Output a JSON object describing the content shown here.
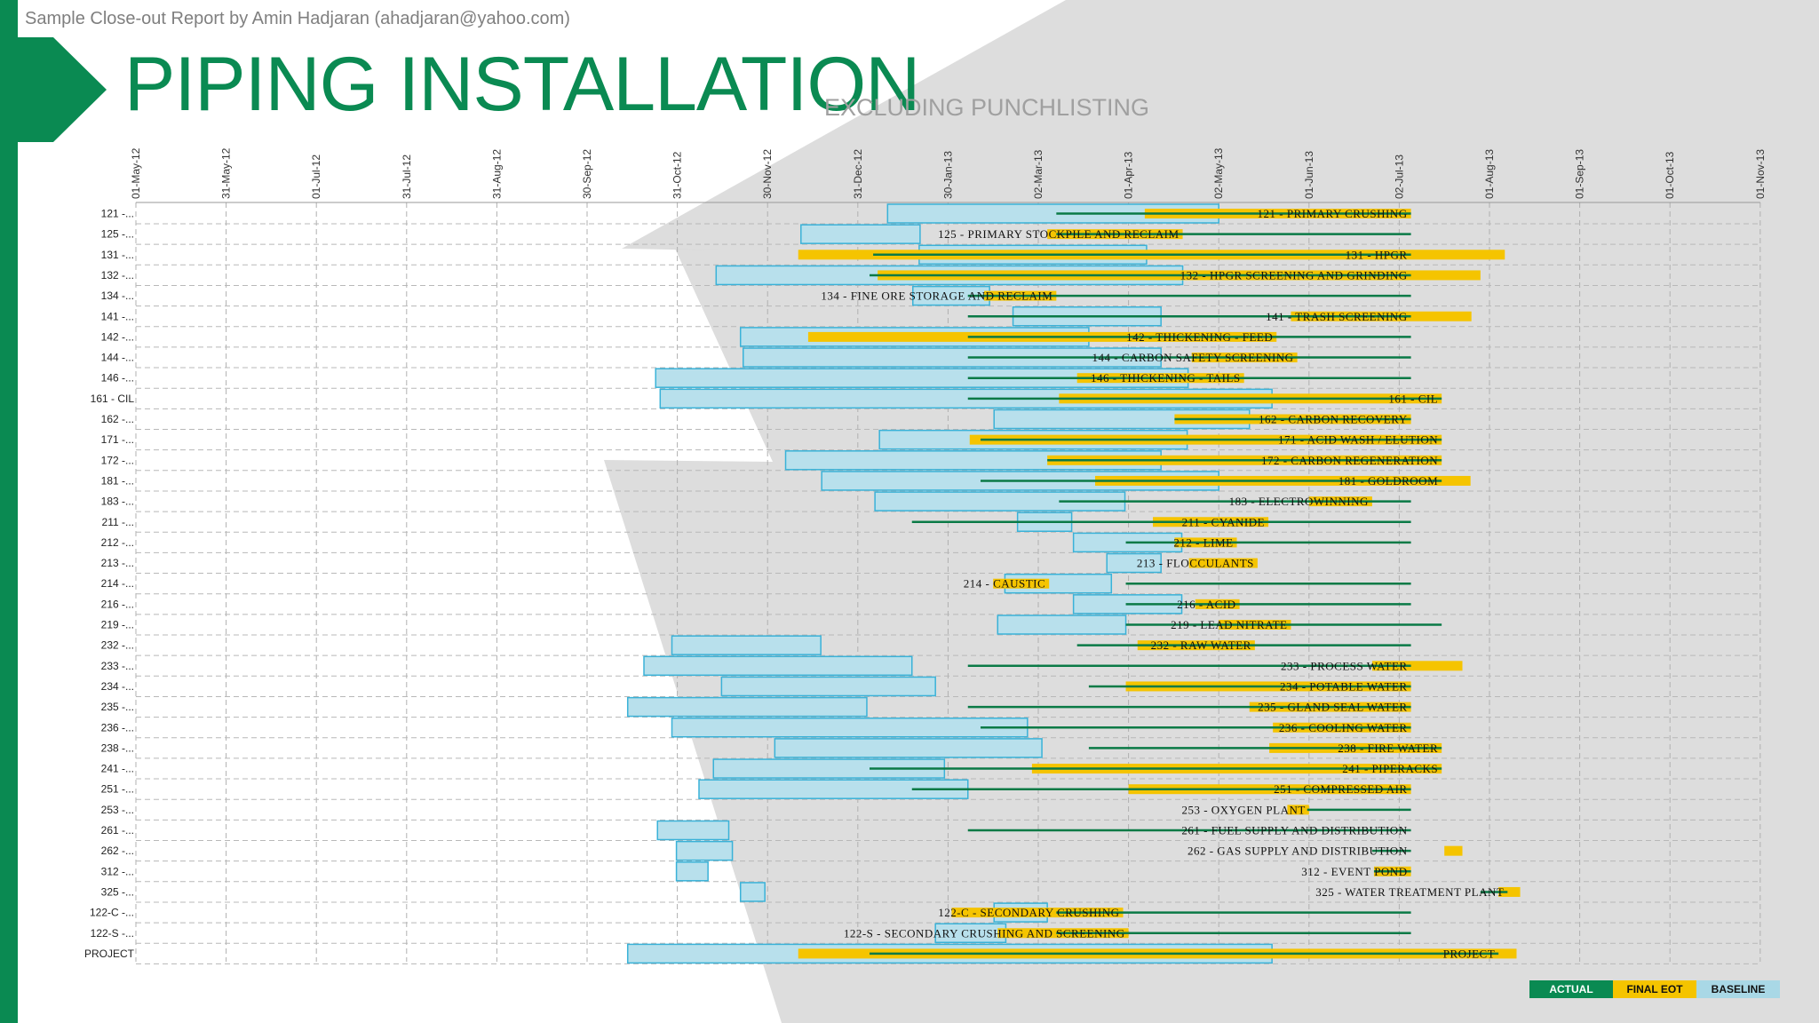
{
  "header": {
    "note": "Sample Close-out Report by Amin Hadjaran (ahadjaran@yahoo.com)",
    "title": "PIPING INSTALLATION",
    "subtitle": "EXCLUDING PUNCHLISTING"
  },
  "colors": {
    "brand_green": "#0a8a52",
    "actual": "#0a7a46",
    "final_eot": "#f5c400",
    "baseline_fill": "#b8e0ec",
    "baseline_stroke": "#3ab2d8",
    "accent_yellow": "#f5c400"
  },
  "legend": [
    {
      "label": "ACTUAL",
      "color": "#0a8a52",
      "text_color": "#ffffff"
    },
    {
      "label": "FINAL EOT",
      "color": "#f5c400",
      "text_color": "#111111"
    },
    {
      "label": "BASELINE",
      "color": "#a9d8e6",
      "text_color": "#111111"
    }
  ],
  "chart_data": {
    "type": "gantt",
    "x_ticks": [
      "01-May-12",
      "31-May-12",
      "01-Jul-12",
      "31-Jul-12",
      "31-Aug-12",
      "30-Sep-12",
      "31-Oct-12",
      "30-Nov-12",
      "31-Dec-12",
      "30-Jan-13",
      "02-Mar-13",
      "01-Apr-13",
      "02-May-13",
      "01-Jun-13",
      "02-Jul-13",
      "01-Aug-13",
      "01-Sep-13",
      "01-Oct-13",
      "01-Nov-13"
    ],
    "series_names": [
      "Actual",
      "Final EOT",
      "Baseline"
    ],
    "rows": [
      {
        "label": "121 -...",
        "name": "121 - PRIMARY CRUSHING",
        "baseline": [
          8.33,
          12.0
        ],
        "final": [
          11.18,
          14.13
        ],
        "actual": [
          10.2,
          14.13
        ]
      },
      {
        "label": "125 -...",
        "name": "125 - PRIMARY STOCKPILE AND RECLAIM",
        "baseline": [
          7.37,
          8.69
        ],
        "final": [
          10.1,
          11.6
        ],
        "actual": [
          10.2,
          14.13
        ]
      },
      {
        "label": "131 -...",
        "name": "131 - HPGR",
        "baseline": [
          8.68,
          11.2
        ],
        "final": [
          7.34,
          15.17
        ],
        "actual": [
          8.17,
          14.13
        ]
      },
      {
        "label": "132 -...",
        "name": "132 - HPGR SCREENING AND GRINDING",
        "baseline": [
          6.43,
          11.6
        ],
        "final": [
          8.22,
          14.9
        ],
        "actual": [
          8.13,
          14.13
        ]
      },
      {
        "label": "134 -...",
        "name": "134 - FINE ORE STORAGE AND RECLAIM",
        "baseline": [
          8.61,
          9.46
        ],
        "final": [
          9.4,
          10.2
        ],
        "actual": [
          9.22,
          14.13
        ]
      },
      {
        "label": "141 -...",
        "name": "141 - TRASH SCREENING",
        "baseline": [
          9.72,
          11.36
        ],
        "final": [
          12.8,
          14.8
        ],
        "actual": [
          9.22,
          14.13
        ]
      },
      {
        "label": "142 -...",
        "name": "142 - THICKENING - FEED",
        "baseline": [
          6.7,
          10.56
        ],
        "final": [
          7.45,
          12.64
        ],
        "actual": [
          9.22,
          14.13
        ]
      },
      {
        "label": "144 -...",
        "name": "144 - CARBON SAFETY SCREENING",
        "baseline": [
          6.73,
          11.36
        ],
        "final": [
          11.7,
          12.87
        ],
        "actual": [
          9.22,
          14.13
        ]
      },
      {
        "label": "146 -...",
        "name": "146 - THICKENING - TAILS",
        "baseline": [
          5.76,
          11.66
        ],
        "final": [
          10.43,
          12.28
        ],
        "actual": [
          9.22,
          14.13
        ]
      },
      {
        "label": "161 - CIL",
        "name": "161 - CIL",
        "baseline": [
          5.81,
          12.59
        ],
        "final": [
          10.23,
          14.47
        ],
        "actual": [
          9.22,
          14.47
        ]
      },
      {
        "label": "162 -...",
        "name": "162 - CARBON RECOVERY",
        "baseline": [
          9.51,
          12.34
        ],
        "final": [
          11.51,
          14.13
        ],
        "actual": [
          11.51,
          14.13
        ]
      },
      {
        "label": "171 -...",
        "name": "171 - ACID WASH / ELUTION",
        "baseline": [
          8.24,
          11.65
        ],
        "final": [
          9.24,
          14.47
        ],
        "actual": [
          9.36,
          14.47
        ]
      },
      {
        "label": "172 -...",
        "name": "172 - CARBON REGENERATION",
        "baseline": [
          7.2,
          11.36
        ],
        "final": [
          10.1,
          14.47
        ],
        "actual": [
          10.1,
          14.47
        ]
      },
      {
        "label": "181 -...",
        "name": "181 - GOLDROOM",
        "baseline": [
          7.6,
          12.0
        ],
        "final": [
          10.63,
          14.79
        ],
        "actual": [
          9.36,
          14.47
        ]
      },
      {
        "label": "183 -...",
        "name": "183 - ELECTROWINNING",
        "baseline": [
          8.19,
          10.96
        ],
        "final": [
          13.0,
          13.7
        ],
        "actual": [
          10.23,
          14.13
        ]
      },
      {
        "label": "211 -...",
        "name": "211 - CYANIDE",
        "baseline": [
          9.77,
          10.37
        ],
        "final": [
          11.27,
          12.55
        ],
        "actual": [
          8.6,
          14.13
        ]
      },
      {
        "label": "212 -...",
        "name": "212 - LIME",
        "baseline": [
          10.39,
          11.59
        ],
        "final": [
          11.51,
          12.2
        ],
        "actual": [
          10.97,
          14.13
        ]
      },
      {
        "label": "213 -...",
        "name": "213 - FLOCCULANTS",
        "baseline": [
          10.76,
          11.36
        ],
        "final": [
          11.67,
          12.43
        ],
        "actual": null
      },
      {
        "label": "214 -...",
        "name": "214 - CAUSTIC",
        "baseline": [
          9.63,
          10.81
        ],
        "final": [
          9.5,
          10.12
        ],
        "actual": [
          10.97,
          14.13
        ]
      },
      {
        "label": "216 -...",
        "name": "216 - ACID",
        "baseline": [
          10.39,
          11.59
        ],
        "final": [
          11.74,
          12.23
        ],
        "actual": [
          10.97,
          14.13
        ]
      },
      {
        "label": "219 -...",
        "name": "219 - LEAD NITRATE",
        "baseline": [
          9.55,
          10.97
        ],
        "final": [
          12.0,
          12.8
        ],
        "actual": [
          10.97,
          14.47
        ]
      },
      {
        "label": "232 -...",
        "name": "232 - RAW WATER",
        "baseline": [
          5.94,
          7.59
        ],
        "final": [
          11.1,
          12.4
        ],
        "actual": [
          10.43,
          14.13
        ]
      },
      {
        "label": "233 -...",
        "name": "233 - PROCESS WATER",
        "baseline": [
          5.63,
          8.6
        ],
        "final": [
          13.7,
          14.7
        ],
        "actual": [
          9.22,
          14.13
        ]
      },
      {
        "label": "234 -...",
        "name": "234 - POTABLE WATER",
        "baseline": [
          6.49,
          8.86
        ],
        "final": [
          10.97,
          14.13
        ],
        "actual": [
          10.56,
          14.13
        ]
      },
      {
        "label": "235 -...",
        "name": "235 - GLAND SEAL WATER",
        "baseline": [
          5.45,
          8.1
        ],
        "final": [
          12.34,
          14.13
        ],
        "actual": [
          9.22,
          14.13
        ]
      },
      {
        "label": "236 -...",
        "name": "236 - COOLING WATER",
        "baseline": [
          5.94,
          9.88
        ],
        "final": [
          12.6,
          14.13
        ],
        "actual": [
          9.36,
          14.13
        ]
      },
      {
        "label": "238 -...",
        "name": "238 - FIRE WATER",
        "baseline": [
          7.08,
          10.04
        ],
        "final": [
          12.56,
          14.47
        ],
        "actual": [
          10.56,
          14.47
        ]
      },
      {
        "label": "241 -...",
        "name": "241 - PIPERACKS",
        "baseline": [
          6.4,
          8.96
        ],
        "final": [
          9.93,
          14.47
        ],
        "actual": [
          8.13,
          14.47
        ]
      },
      {
        "label": "251 -...",
        "name": "251 - COMPRESSED AIR",
        "baseline": [
          6.24,
          9.22
        ],
        "final": [
          11.0,
          14.13
        ],
        "actual": [
          8.6,
          14.13
        ]
      },
      {
        "label": "253 -...",
        "name": "253 - OXYGEN PLANT",
        "baseline": null,
        "final": [
          12.76,
          13.0
        ],
        "actual": [
          12.98,
          14.13
        ]
      },
      {
        "label": "261 -...",
        "name": "261 - FUEL SUPPLY AND DISTRIBUTION",
        "baseline": [
          5.78,
          6.57
        ],
        "final": null,
        "actual": [
          9.22,
          14.13
        ]
      },
      {
        "label": "262 -...",
        "name": "262 - GAS SUPPLY AND DISTRIBUTION",
        "baseline": [
          5.99,
          6.61
        ],
        "final": [
          14.5,
          14.7
        ],
        "actual": [
          13.7,
          14.13
        ]
      },
      {
        "label": "312 -...",
        "name": "312 - EVENT POND",
        "baseline": [
          5.99,
          6.34
        ],
        "final": [
          13.72,
          14.13
        ],
        "actual": [
          13.72,
          14.13
        ]
      },
      {
        "label": "325 -...",
        "name": "325 - WATER TREATMENT PLANT",
        "baseline": [
          6.7,
          6.97
        ],
        "final": [
          15.1,
          15.34
        ],
        "actual": [
          14.9,
          15.2
        ]
      },
      {
        "label": "122-C -...",
        "name": "122-C - SECONDARY CRUSHING",
        "baseline": [
          9.51,
          10.1
        ],
        "final": [
          9.04,
          10.94
        ],
        "actual": [
          10.2,
          14.13
        ]
      },
      {
        "label": "122-S -...",
        "name": "122-S - SECONDARY CRUSHING AND SCREENING",
        "baseline": [
          8.86,
          9.64
        ],
        "final": [
          9.55,
          11.0
        ],
        "actual": [
          10.2,
          14.13
        ]
      },
      {
        "label": "PROJECT",
        "name": "PROJECT",
        "baseline": [
          5.45,
          12.59
        ],
        "final": [
          7.34,
          15.3
        ],
        "actual": [
          8.13,
          15.1
        ]
      }
    ]
  }
}
